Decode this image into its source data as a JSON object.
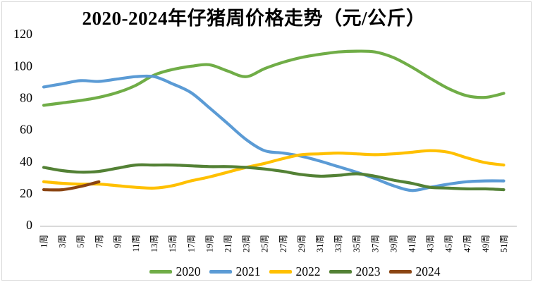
{
  "figure": {
    "background": "#FFFFFF",
    "border_color": "#D8D8D8",
    "axis_line_color": "#D9D9D9",
    "text_color": "#000000"
  },
  "chart_data": {
    "type": "line",
    "title": "2020-2024年仔猪周价格走势（元/公斤）",
    "xlabel": "",
    "ylabel": "",
    "unit": "元/公斤",
    "ylim": [
      0,
      120
    ],
    "y_ticks": [
      0,
      20,
      40,
      60,
      80,
      100,
      120
    ],
    "grid": false,
    "smooth_lines": true,
    "legend_position": "bottom",
    "categories": [
      "1周",
      "3周",
      "5周",
      "7周",
      "9周",
      "11周",
      "13周",
      "15周",
      "17周",
      "19周",
      "21周",
      "23周",
      "25周",
      "27周",
      "29周",
      "31周",
      "33周",
      "35周",
      "37周",
      "39周",
      "41周",
      "43周",
      "45周",
      "47周",
      "49周",
      "51周"
    ],
    "series": [
      {
        "name": "2020",
        "color": "#70AD47",
        "values": [
          76,
          77.5,
          79,
          81,
          84,
          88.5,
          95,
          98.5,
          100.5,
          101.5,
          97.5,
          94,
          99,
          103,
          106,
          108,
          109.5,
          110,
          109.5,
          106,
          100,
          93,
          86.5,
          82,
          81,
          83.5
        ]
      },
      {
        "name": "2021",
        "color": "#5B9BD5",
        "values": [
          87.5,
          89.5,
          91.5,
          91,
          92.5,
          94,
          94,
          89.5,
          84,
          74.5,
          64.5,
          54.5,
          47.5,
          46,
          44,
          41,
          37.5,
          34,
          30,
          25.5,
          22.5,
          24.5,
          26.5,
          28,
          28.5,
          28.5
        ]
      },
      {
        "name": "2022",
        "color": "#FFC000",
        "values": [
          28,
          27,
          26.5,
          26.5,
          25.5,
          24.5,
          24,
          25.5,
          28.5,
          31,
          34,
          37,
          39.5,
          42.5,
          45,
          45.5,
          46,
          45.5,
          45,
          45.5,
          46.5,
          47.5,
          46.5,
          43,
          40,
          38.5
        ]
      },
      {
        "name": "2023",
        "color": "#538135",
        "values": [
          37,
          35,
          34,
          34.5,
          36.5,
          38.5,
          38.5,
          38.5,
          38,
          37.5,
          37.5,
          37,
          36,
          34.5,
          32.5,
          31.5,
          32,
          33,
          31.5,
          29,
          27,
          24.5,
          24,
          23.5,
          23.5,
          23
        ]
      },
      {
        "name": "2024",
        "color": "#8B4513",
        "values": [
          23,
          23,
          25,
          28
        ]
      }
    ]
  }
}
